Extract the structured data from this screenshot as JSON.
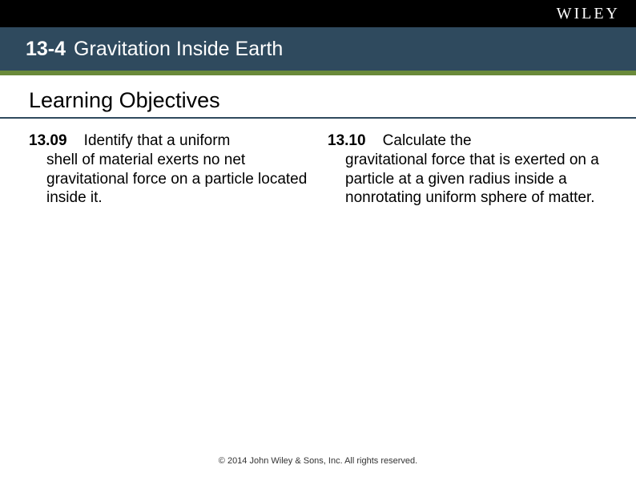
{
  "brand": {
    "logo": "WILEY"
  },
  "header": {
    "section_number": "13-4",
    "section_title": "Gravitation Inside Earth"
  },
  "subheading": "Learning Objectives",
  "objectives": {
    "left": {
      "number": "13.09",
      "first_line": "Identify that a uniform",
      "body": "shell of material exerts no net gravitational force on a particle located inside it."
    },
    "right": {
      "number": "13.10",
      "first_line": "Calculate the",
      "body": "gravitational force that is exerted on a particle at a given radius inside a nonrotating uniform sphere of matter."
    }
  },
  "footer": "© 2014 John Wiley & Sons, Inc. All rights reserved.",
  "colors": {
    "top_bar": "#000000",
    "title_bar": "#2f4a5e",
    "green_line": "#6a8a3a",
    "underline": "#2f4a5e",
    "text": "#000000",
    "logo_text": "#ffffff"
  }
}
